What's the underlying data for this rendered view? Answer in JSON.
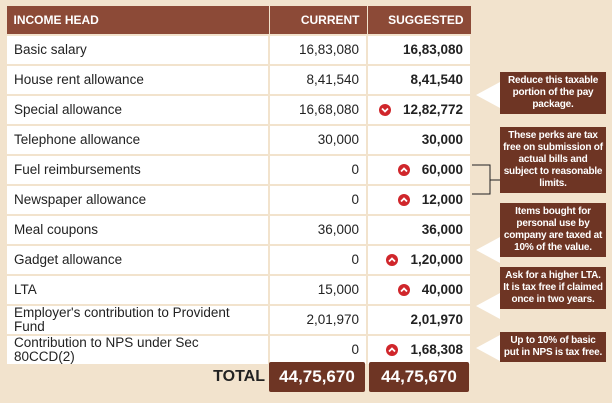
{
  "table": {
    "header": [
      "INCOME HEAD",
      "CURRENT",
      "SUGGESTED"
    ],
    "rows": [
      [
        "Basic salary",
        "16,83,080",
        "16,83,080"
      ],
      [
        "House rent allowance",
        "8,41,540",
        "8,41,540"
      ],
      [
        "Special allowance",
        "16,68,080",
        "12,82,772"
      ],
      [
        "Telephone allowance",
        "30,000",
        "30,000"
      ],
      [
        "Fuel reimbursements",
        "0",
        "60,000"
      ],
      [
        "Newspaper allowance",
        "0",
        "12,000"
      ],
      [
        "Meal coupons",
        "36,000",
        "36,000"
      ],
      [
        "Gadget allowance",
        "0",
        "1,20,000"
      ],
      [
        "LTA",
        "15,000",
        "40,000"
      ],
      [
        "Employer's contribution to Provident Fund",
        "2,01,970",
        "2,01,970"
      ],
      [
        "Contribution to NPS under Sec 80CCD(2)",
        "0",
        "1,68,308"
      ]
    ],
    "total": {
      "label": "TOTAL",
      "current": "44,75,670",
      "suggested": "44,75,670"
    }
  },
  "notes": [
    "Reduce this taxable portion of the pay package.",
    "These perks are tax free on submission of actual bills and subject to reasonable limits.",
    "Items bought for personal use by company are taxed at 10% of the value.",
    "Ask for a higher LTA. It is tax free if claimed once in two years.",
    "Up to 10% of basic put in NPS is tax free."
  ]
}
